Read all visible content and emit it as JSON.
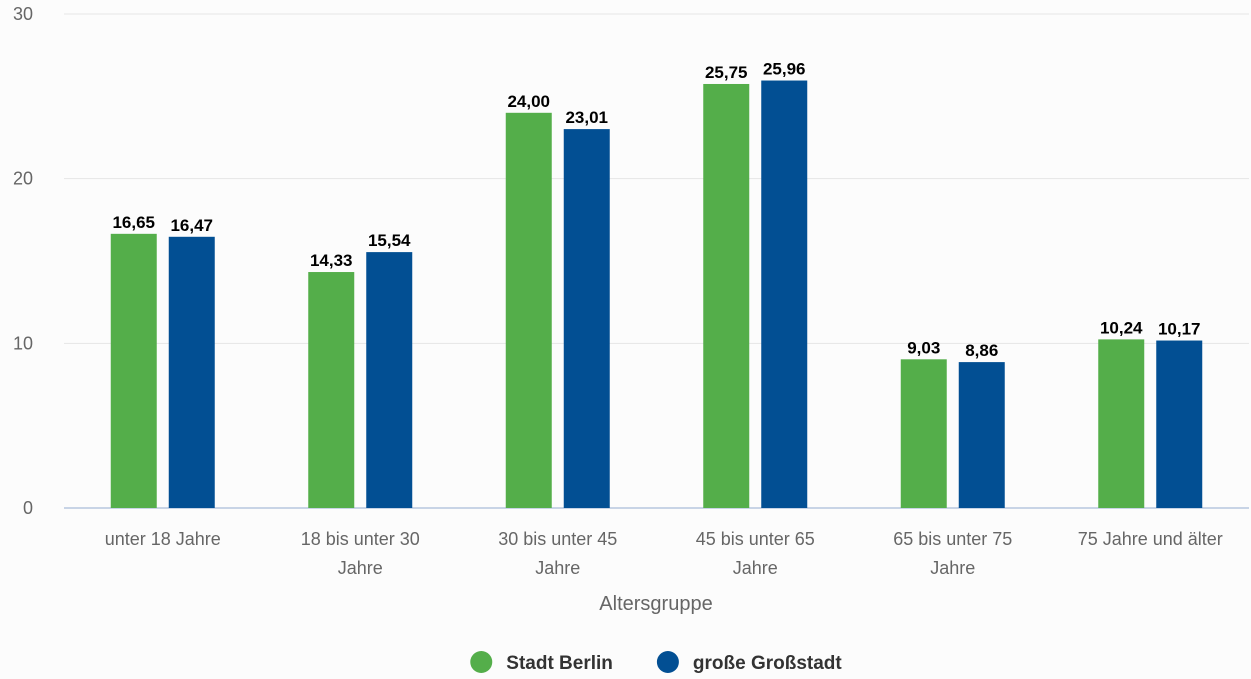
{
  "chart_data": {
    "type": "bar",
    "categories": [
      [
        "unter 18 Jahre"
      ],
      [
        "18 bis unter 30",
        "Jahre"
      ],
      [
        "30 bis unter 45",
        "Jahre"
      ],
      [
        "45 bis unter 65",
        "Jahre"
      ],
      [
        "65 bis unter 75",
        "Jahre"
      ],
      [
        "75 Jahre und älter"
      ]
    ],
    "series": [
      {
        "name": "Stadt Berlin",
        "color": "#54ae4a",
        "values": [
          16.65,
          14.33,
          24.0,
          25.75,
          9.03,
          10.24
        ],
        "labels": [
          "16,65",
          "14,33",
          "24,00",
          "25,75",
          "9,03",
          "10,24"
        ]
      },
      {
        "name": "große Großstadt",
        "color": "#024f93",
        "values": [
          16.47,
          15.54,
          23.01,
          25.96,
          8.86,
          10.17
        ],
        "labels": [
          "16,47",
          "15,54",
          "23,01",
          "25,96",
          "8,86",
          "10,17"
        ]
      }
    ],
    "xlabel": "Altersgruppe",
    "ylabel": "",
    "ylim": [
      0,
      30
    ],
    "yticks": [
      0,
      10,
      20,
      30
    ],
    "grid": true,
    "legend_position": "bottom-center"
  }
}
